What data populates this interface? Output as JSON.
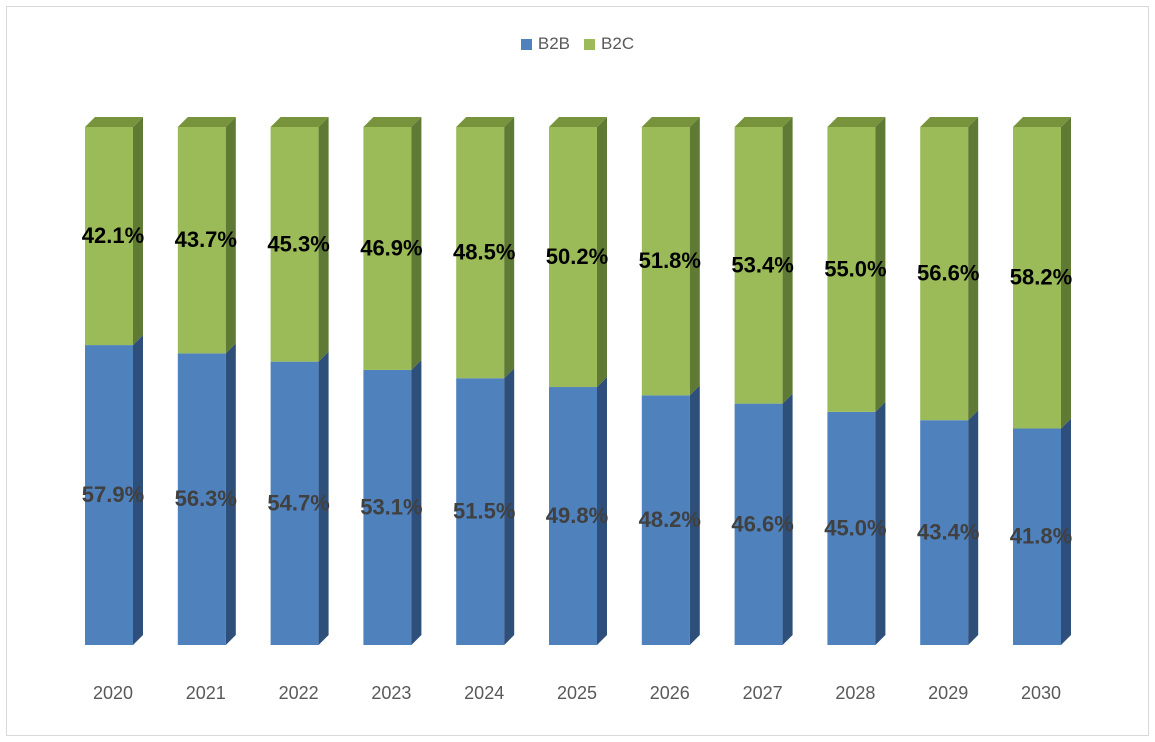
{
  "chart_data": {
    "type": "bar",
    "stacked": true,
    "style": "3d-stacked-100-percent",
    "categories": [
      "2020",
      "2021",
      "2022",
      "2023",
      "2024",
      "2025",
      "2026",
      "2027",
      "2028",
      "2029",
      "2030"
    ],
    "series": [
      {
        "name": "B2B",
        "color": "#4f81bd",
        "side_color": "#2e4f7a",
        "top_color": "#4f81bd",
        "values": [
          57.9,
          56.3,
          54.7,
          53.1,
          51.5,
          49.8,
          48.2,
          46.6,
          45.0,
          43.4,
          41.8
        ],
        "labels": [
          "57.9%",
          "56.3%",
          "54.7%",
          "53.1%",
          "51.5%",
          "49.8%",
          "48.2%",
          "46.6%",
          "45.0%",
          "43.4%",
          "41.8%"
        ],
        "label_color": "#404040"
      },
      {
        "name": "B2C",
        "color": "#9bbb59",
        "side_color": "#5f7a34",
        "top_color": "#77933c",
        "values": [
          42.1,
          43.7,
          45.3,
          46.9,
          48.5,
          50.2,
          51.8,
          53.4,
          55.0,
          56.6,
          58.2
        ],
        "labels": [
          "42.1%",
          "43.7%",
          "45.3%",
          "46.9%",
          "48.5%",
          "50.2%",
          "51.8%",
          "53.4%",
          "55.0%",
          "56.6%",
          "58.2%"
        ],
        "label_color": "#000000"
      }
    ],
    "ylim": [
      0,
      100
    ],
    "legend_position": "top",
    "grid": false
  }
}
